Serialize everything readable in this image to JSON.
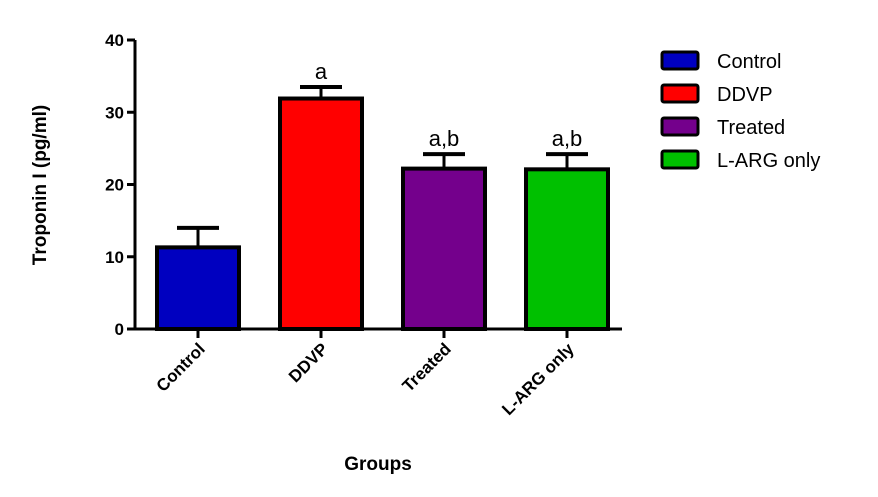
{
  "chart_data": {
    "type": "bar",
    "title": "",
    "xlabel": "Groups",
    "ylabel": "Troponin I  (pg/ml)",
    "ylim": [
      0,
      40
    ],
    "yticks": [
      "0",
      "10",
      "20",
      "30",
      "40"
    ],
    "grid": false,
    "categories": [
      "Control",
      "DDVP",
      "Treated",
      "L-ARG only"
    ],
    "values": [
      11.3,
      31.9,
      22.2,
      22.1
    ],
    "errors": [
      2.7,
      1.6,
      2.0,
      2.1
    ],
    "annotations": [
      "",
      "a",
      "a,b",
      "a,b"
    ],
    "colors": [
      "#0000c0",
      "#ff0000",
      "#74008c",
      "#00c000"
    ],
    "legend": {
      "placement": "top-right",
      "entries": [
        "Control",
        "DDVP",
        "Treated",
        "L-ARG only"
      ]
    }
  }
}
